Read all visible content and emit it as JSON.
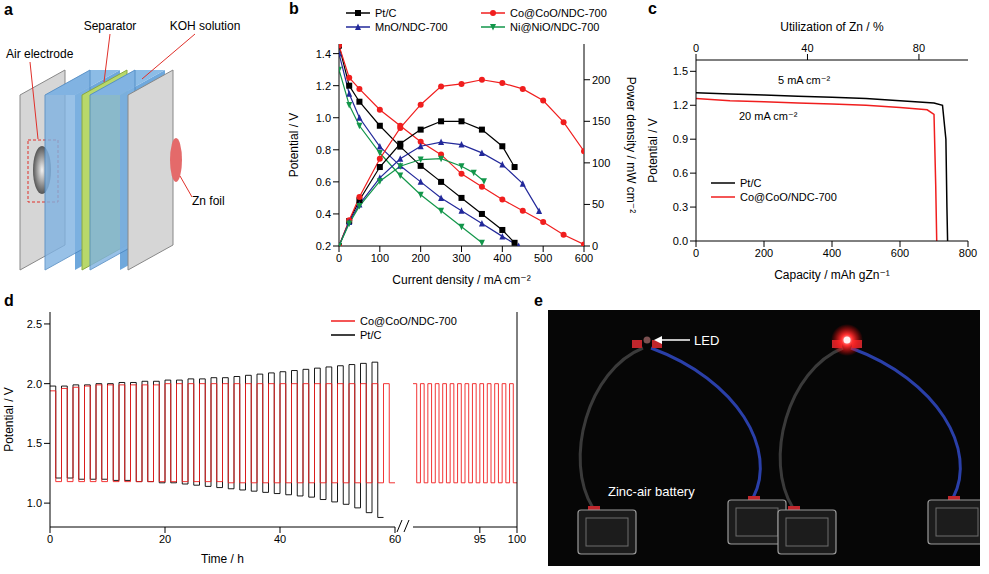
{
  "diagram": {
    "panel": "a",
    "labels": {
      "air_electrode": "Air electrode",
      "separator": "Separator",
      "electrolyte": "KOH solution",
      "anode": "Zn foil"
    }
  },
  "chart_data": [
    {
      "panel": "b",
      "type": "line",
      "x_label": "Current density / mA cm⁻²",
      "y_label": "Potential / V",
      "y2_label": "Power density / mW cm⁻²",
      "xlim": [
        0,
        600
      ],
      "xticks": [
        0,
        100,
        200,
        300,
        400,
        500,
        600
      ],
      "ylim": [
        0.2,
        1.46
      ],
      "yticks": [
        0.2,
        0.4,
        0.6,
        0.8,
        {
          "value": 1,
          "label": "1.0"
        },
        1.2,
        1.4
      ],
      "y2lim": [
        0,
        243
      ],
      "y2ticks": [
        0,
        50,
        100,
        150,
        200
      ],
      "legend": "top",
      "series": [
        {
          "name": "Pt/C",
          "color": "#000000",
          "marker": "square",
          "x": [
            0,
            25,
            50,
            100,
            150,
            200,
            250,
            300,
            350,
            400,
            430
          ],
          "values": [
            1.45,
            1.2,
            1.1,
            0.95,
            0.82,
            0.7,
            0.6,
            0.5,
            0.4,
            0.3,
            0.22
          ]
        },
        {
          "name": "Co@CoO/NDC-700",
          "color": "#f01e1e",
          "marker": "circle",
          "x": [
            0,
            25,
            50,
            100,
            150,
            200,
            250,
            300,
            350,
            400,
            450,
            500,
            550,
            600
          ],
          "values": [
            1.45,
            1.25,
            1.18,
            1.05,
            0.95,
            0.85,
            0.77,
            0.65,
            0.57,
            0.49,
            0.42,
            0.35,
            0.27,
            0.21
          ]
        },
        {
          "name": "MnO/NDC-700",
          "color": "#22289a",
          "marker": "triangle",
          "x": [
            0,
            25,
            50,
            100,
            150,
            200,
            250,
            300,
            350,
            400,
            440
          ],
          "values": [
            1.4,
            1.15,
            1.0,
            0.82,
            0.7,
            0.6,
            0.5,
            0.42,
            0.34,
            0.26,
            0.2
          ]
        },
        {
          "name": "Ni@NiO/NDC-700",
          "color": "#12964a",
          "marker": "triangle_down",
          "x": [
            0,
            25,
            50,
            100,
            150,
            200,
            250,
            300,
            350
          ],
          "values": [
            1.3,
            1.08,
            0.95,
            0.78,
            0.64,
            0.52,
            0.42,
            0.32,
            0.22
          ]
        },
        {
          "name": "Pt/C",
          "color": "#000000",
          "marker": "square",
          "axis": "y2",
          "x": [
            0,
            25,
            50,
            100,
            150,
            200,
            250,
            300,
            350,
            400,
            430
          ],
          "values": [
            0,
            30,
            55,
            95,
            123,
            140,
            150,
            150,
            140,
            120,
            95
          ]
        },
        {
          "name": "Co@CoO/NDC-700",
          "color": "#f01e1e",
          "marker": "circle",
          "axis": "y2",
          "x": [
            0,
            25,
            50,
            100,
            150,
            200,
            250,
            300,
            350,
            400,
            450,
            500,
            550,
            600
          ],
          "values": [
            0,
            31,
            59,
            105,
            142,
            170,
            192,
            195,
            200,
            196,
            189,
            175,
            149,
            114
          ]
        },
        {
          "name": "MnO/NDC-700",
          "color": "#22289a",
          "marker": "triangle",
          "axis": "y2",
          "x": [
            0,
            25,
            50,
            100,
            150,
            200,
            250,
            300,
            350,
            400,
            450,
            490
          ],
          "values": [
            0,
            29,
            50,
            82,
            105,
            120,
            125,
            122,
            112,
            98,
            75,
            42
          ]
        },
        {
          "name": "Ni@NiO/NDC-700",
          "color": "#12964a",
          "marker": "triangle_down",
          "axis": "y2",
          "x": [
            0,
            25,
            50,
            100,
            150,
            200,
            250,
            300,
            330,
            355
          ],
          "values": [
            0,
            27,
            48,
            78,
            96,
            104,
            105,
            96,
            88,
            78
          ]
        }
      ]
    },
    {
      "panel": "c",
      "type": "line",
      "x_label": "Capacity / mAh gZn⁻¹",
      "x2_label": "Utilization of Zn / %",
      "y_label": "Potential / V",
      "xlim": [
        0,
        800
      ],
      "xticks": [
        0,
        200,
        400,
        600,
        800
      ],
      "x2lim": [
        0,
        97.6
      ],
      "x2ticks": [
        0,
        40,
        80
      ],
      "ylim": [
        0,
        1.6
      ],
      "yticks": [
        {
          "value": 0,
          "label": "0.0"
        },
        0.3,
        0.6,
        0.9,
        1.2,
        1.5
      ],
      "annotations": [
        "5 mA cm⁻²",
        "20 mA cm⁻²"
      ],
      "legend": "lower left",
      "series": [
        {
          "name": "Pt/C",
          "color": "#000000",
          "x": [
            0,
            100,
            200,
            300,
            400,
            500,
            600,
            700,
            725,
            735,
            738,
            740
          ],
          "values": [
            1.31,
            1.3,
            1.29,
            1.28,
            1.27,
            1.26,
            1.24,
            1.22,
            1.2,
            0.9,
            0.3,
            0
          ]
        },
        {
          "name": "Co@CoO/NDC-700",
          "color": "#f01e1e",
          "x": [
            0,
            100,
            200,
            300,
            400,
            500,
            600,
            680,
            700,
            705,
            708
          ],
          "values": [
            1.26,
            1.24,
            1.23,
            1.22,
            1.21,
            1.2,
            1.18,
            1.16,
            1.12,
            0.5,
            0
          ]
        }
      ]
    },
    {
      "panel": "d",
      "type": "line",
      "x_label": "Time / h",
      "y_label": "Potential / V",
      "x_segments": [
        {
          "xlim": [
            0,
            60
          ],
          "xticks": [
            0,
            20,
            40,
            60
          ]
        },
        {
          "xlim": [
            86,
            100
          ],
          "xticks": [
            95,
            100
          ]
        }
      ],
      "ylim": [
        0.8,
        2.6
      ],
      "yticks": [
        {
          "value": 1,
          "label": "1.0"
        },
        1.5,
        {
          "value": 2,
          "label": "2.0"
        },
        2.5
      ],
      "legend": "upper right",
      "series": [
        {
          "name": "Co@CoO/NDC-700",
          "color": "#f01e1e",
          "x": [
            0,
            1,
            1,
            2,
            2,
            3,
            3,
            4,
            4,
            5,
            5,
            6,
            6,
            7,
            7,
            8,
            8,
            9,
            9,
            10,
            10,
            11,
            11,
            12,
            12,
            13,
            13,
            14,
            14,
            15,
            15,
            16,
            16,
            17,
            17,
            18,
            18,
            19,
            19,
            20,
            20,
            21,
            21,
            22,
            22,
            23,
            23,
            24,
            24,
            25,
            25,
            26,
            26,
            27,
            27,
            28,
            28,
            29,
            29,
            30,
            30,
            31,
            31,
            32,
            32,
            33,
            33,
            34,
            34,
            35,
            35,
            36,
            36,
            37,
            37,
            38,
            38,
            39,
            39,
            40,
            40,
            41,
            41,
            42,
            42,
            43,
            43,
            44,
            44,
            45,
            45,
            46,
            46,
            47,
            47,
            48,
            48,
            49,
            49,
            50,
            50,
            51,
            51,
            52,
            52,
            53,
            53,
            54,
            54,
            55,
            55,
            56,
            56,
            57,
            57,
            58,
            58,
            59,
            59,
            60,
            86,
            86.5,
            86.5,
            87,
            87,
            87.5,
            87.5,
            88,
            88,
            88.5,
            88.5,
            89,
            89,
            89.5,
            89.5,
            90,
            90,
            90.5,
            90.5,
            91,
            91,
            91.5,
            91.5,
            92,
            92,
            92.5,
            92.5,
            93,
            93,
            93.5,
            93.5,
            94,
            94,
            94.5,
            94.5,
            95,
            95,
            95.5,
            95.5,
            96,
            96,
            96.5,
            96.5,
            97,
            97,
            97.5,
            97.5,
            98,
            98,
            98.5,
            98.5,
            99,
            99,
            99.5,
            99.5,
            100
          ],
          "values": [
            1.94,
            1.94,
            1.18,
            1.18,
            1.96,
            1.96,
            1.18,
            1.18,
            1.97,
            1.97,
            1.18,
            1.18,
            1.98,
            1.98,
            1.18,
            1.18,
            1.99,
            1.99,
            1.18,
            1.18,
            1.99,
            1.99,
            1.18,
            1.18,
            1.99,
            1.99,
            1.18,
            1.18,
            1.99,
            1.99,
            1.18,
            1.18,
            1.99,
            1.99,
            1.18,
            1.18,
            1.99,
            1.99,
            1.18,
            1.18,
            2.0,
            2.0,
            1.18,
            1.18,
            2.0,
            2.0,
            1.18,
            1.18,
            2.0,
            2.0,
            1.18,
            1.18,
            2.0,
            2.0,
            1.18,
            1.18,
            2.0,
            2.0,
            1.18,
            1.18,
            2.0,
            2.0,
            1.17,
            1.17,
            2.0,
            2.0,
            1.17,
            1.17,
            2.0,
            2.0,
            1.17,
            1.17,
            2.0,
            2.0,
            1.17,
            1.17,
            2.0,
            2.0,
            1.17,
            1.17,
            2.0,
            2.0,
            1.17,
            1.17,
            2.0,
            2.0,
            1.17,
            1.17,
            2.0,
            2.0,
            1.17,
            1.17,
            2.0,
            2.0,
            1.17,
            1.17,
            2.0,
            2.0,
            1.17,
            1.17,
            2.0,
            2.0,
            1.17,
            1.17,
            2.0,
            2.0,
            1.17,
            1.17,
            2.0,
            2.0,
            1.17,
            1.17,
            2.0,
            2.0,
            1.17,
            1.17,
            2.0,
            2.0,
            1.17,
            1.17,
            2.0,
            2.0,
            1.17,
            1.17,
            2.0,
            2.0,
            1.17,
            1.17,
            2.0,
            2.0,
            1.17,
            1.17,
            2.0,
            2.0,
            1.17,
            1.17,
            2.0,
            2.0,
            1.17,
            1.17,
            2.0,
            2.0,
            1.17,
            1.17,
            2.0,
            2.0,
            1.17,
            1.17,
            2.0,
            2.0,
            1.17,
            1.17,
            2.0,
            2.0,
            1.17,
            1.17,
            2.0,
            2.0,
            1.17,
            1.17,
            2.0,
            2.0,
            1.17,
            1.17,
            2.0,
            2.0,
            1.17,
            1.17,
            2.0,
            2.0,
            1.17,
            1.17,
            2.0,
            2.0,
            1.17,
            1.17
          ]
        },
        {
          "name": "Pt/C",
          "color": "#000000",
          "x": [
            0,
            1,
            1,
            2,
            2,
            3,
            3,
            4,
            4,
            5,
            5,
            6,
            6,
            7,
            7,
            8,
            8,
            9,
            9,
            10,
            10,
            11,
            11,
            12,
            12,
            13,
            13,
            14,
            14,
            15,
            15,
            16,
            16,
            17,
            17,
            18,
            18,
            19,
            19,
            20,
            20,
            21,
            21,
            22,
            22,
            23,
            23,
            24,
            24,
            25,
            25,
            26,
            26,
            27,
            27,
            28,
            28,
            29,
            29,
            30,
            30,
            31,
            31,
            32,
            32,
            33,
            33,
            34,
            34,
            35,
            35,
            36,
            36,
            37,
            37,
            38,
            38,
            39,
            39,
            40,
            40,
            41,
            41,
            42,
            42,
            43,
            43,
            44,
            44,
            45,
            45,
            46,
            46,
            47,
            47,
            48,
            48,
            49,
            49,
            50,
            50,
            51,
            51,
            52,
            52,
            53,
            53,
            54,
            54,
            55,
            55,
            56,
            56,
            57,
            57,
            58
          ],
          "values": [
            1.98,
            1.98,
            1.21,
            1.21,
            1.98,
            1.98,
            1.21,
            1.21,
            1.99,
            1.99,
            1.2,
            1.2,
            1.99,
            1.99,
            1.2,
            1.2,
            2.0,
            2.0,
            1.2,
            1.2,
            2.0,
            2.0,
            1.19,
            1.19,
            2.01,
            2.01,
            1.19,
            1.19,
            2.01,
            2.01,
            1.18,
            1.18,
            2.02,
            2.02,
            1.18,
            1.18,
            2.02,
            2.02,
            1.17,
            1.17,
            2.03,
            2.03,
            1.17,
            1.17,
            2.03,
            2.03,
            1.16,
            1.16,
            2.04,
            2.04,
            1.15,
            1.15,
            2.04,
            2.04,
            1.14,
            1.14,
            2.05,
            2.05,
            1.13,
            1.13,
            2.05,
            2.05,
            1.12,
            1.12,
            2.06,
            2.06,
            1.11,
            1.11,
            2.07,
            2.07,
            1.1,
            1.1,
            2.08,
            2.08,
            1.09,
            1.09,
            2.09,
            2.09,
            1.08,
            1.08,
            2.1,
            2.1,
            1.07,
            1.07,
            2.11,
            2.11,
            1.06,
            1.06,
            2.12,
            2.12,
            1.05,
            1.05,
            2.13,
            2.13,
            1.03,
            1.03,
            2.14,
            2.14,
            1.01,
            1.01,
            2.15,
            2.15,
            0.99,
            0.99,
            2.16,
            2.16,
            0.96,
            0.96,
            2.17,
            2.17,
            0.92,
            0.92,
            2.18,
            2.18,
            0.88,
            0.88
          ]
        }
      ]
    }
  ],
  "photo": {
    "panel": "e",
    "labels": {
      "led": "LED",
      "battery": "Zinc-air battery"
    }
  }
}
